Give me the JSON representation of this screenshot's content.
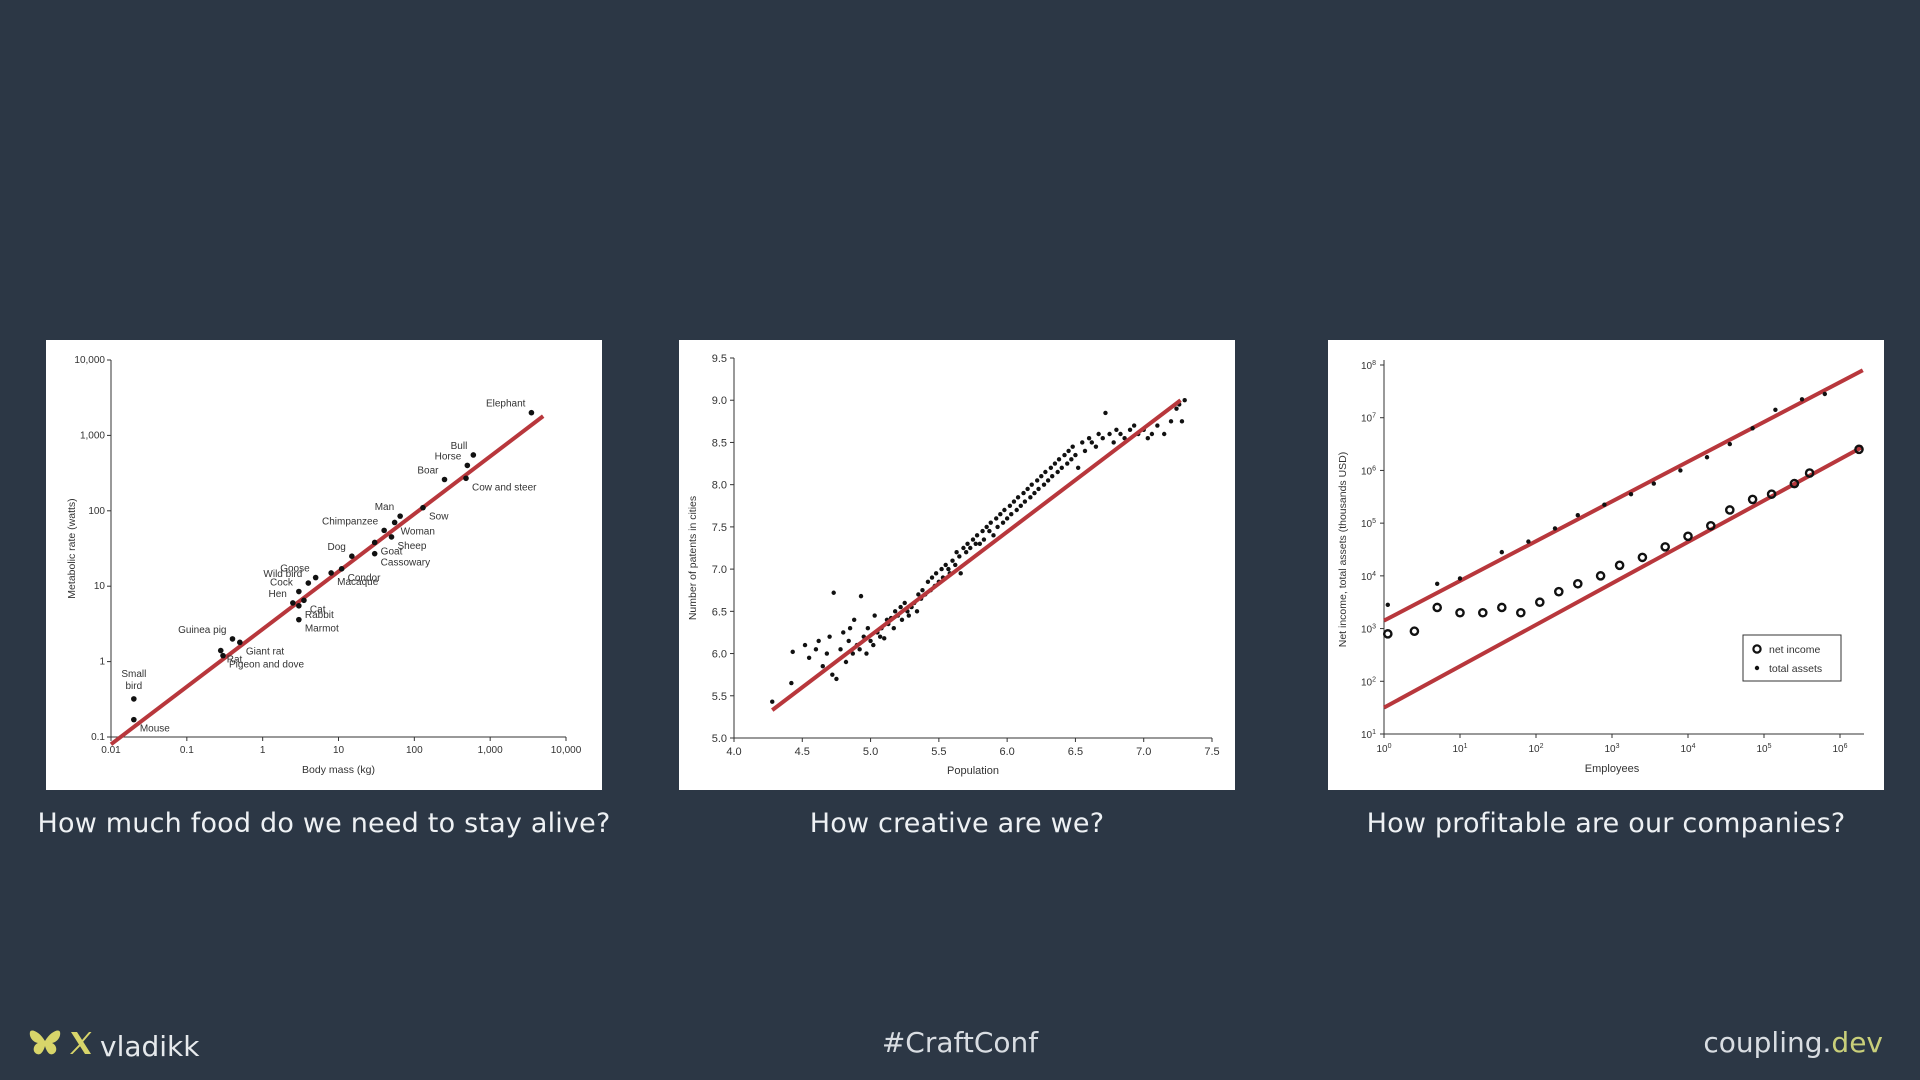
{
  "chart_data": [
    {
      "type": "scatter",
      "scale": "log-log",
      "xlabel": "Body mass (kg)",
      "ylabel": "Metabolic rate (watts)",
      "xlim": [
        0.01,
        10000
      ],
      "ylim": [
        0.1,
        10000
      ],
      "x_ticks": [
        "0.01",
        "0.1",
        "1",
        "10",
        "100",
        "1,000",
        "10,000"
      ],
      "y_ticks": [
        "0.1",
        "1",
        "10",
        "100",
        "1,000",
        "10,000"
      ],
      "fit_line": {
        "x": [
          0.01,
          5000
        ],
        "y": [
          0.08,
          1800
        ],
        "color": "#b8373c"
      },
      "points": [
        {
          "label": "Mouse",
          "x": 0.02,
          "y": 0.17
        },
        {
          "label": "Small bird",
          "x": 0.02,
          "y": 0.32
        },
        {
          "label": "Pigeon and dove",
          "x": 0.3,
          "y": 1.2
        },
        {
          "label": "Guinea pig",
          "x": 0.4,
          "y": 2.0
        },
        {
          "label": "Rat",
          "x": 0.28,
          "y": 1.4
        },
        {
          "label": "Giant rat",
          "x": 0.5,
          "y": 1.8
        },
        {
          "label": "Marmot",
          "x": 3.0,
          "y": 3.6
        },
        {
          "label": "Rabbit",
          "x": 3.0,
          "y": 5.5
        },
        {
          "label": "Cat",
          "x": 3.5,
          "y": 6.5
        },
        {
          "label": "Hen",
          "x": 2.5,
          "y": 6.0
        },
        {
          "label": "Cock",
          "x": 3.0,
          "y": 8.5
        },
        {
          "label": "Goose",
          "x": 5.0,
          "y": 13
        },
        {
          "label": "Wild bird",
          "x": 4.0,
          "y": 11
        },
        {
          "label": "Macaque",
          "x": 8.0,
          "y": 15
        },
        {
          "label": "Condor",
          "x": 11,
          "y": 17
        },
        {
          "label": "Dog",
          "x": 15,
          "y": 25
        },
        {
          "label": "Cassowary",
          "x": 30,
          "y": 27
        },
        {
          "label": "Goat",
          "x": 30,
          "y": 38
        },
        {
          "label": "Sheep",
          "x": 50,
          "y": 45
        },
        {
          "label": "Chimpanzee",
          "x": 40,
          "y": 55
        },
        {
          "label": "Woman",
          "x": 55,
          "y": 70
        },
        {
          "label": "Man",
          "x": 65,
          "y": 85
        },
        {
          "label": "Sow",
          "x": 130,
          "y": 110
        },
        {
          "label": "Boar",
          "x": 250,
          "y": 260
        },
        {
          "label": "Cow and steer",
          "x": 480,
          "y": 270
        },
        {
          "label": "Horse",
          "x": 500,
          "y": 400
        },
        {
          "label": "Bull",
          "x": 600,
          "y": 550
        },
        {
          "label": "Elephant",
          "x": 3500,
          "y": 2000
        }
      ]
    },
    {
      "type": "scatter",
      "xlabel": "Population",
      "ylabel": "Number of patents in cities",
      "xlim": [
        4.0,
        7.5
      ],
      "ylim": [
        5.0,
        9.5
      ],
      "x_ticks": [
        "4.0",
        "4.5",
        "5.0",
        "5.5",
        "6.0",
        "6.5",
        "7.0",
        "7.5"
      ],
      "y_ticks": [
        "5.0",
        "5.5",
        "6.0",
        "6.5",
        "7.0",
        "7.5",
        "8.0",
        "8.5",
        "9.0",
        "9.5"
      ],
      "fit_line": {
        "x": [
          4.28,
          7.27
        ],
        "y": [
          5.33,
          9.0
        ],
        "color": "#b8373c"
      },
      "points": [
        [
          4.28,
          5.43
        ],
        [
          4.42,
          5.65
        ],
        [
          4.43,
          6.02
        ],
        [
          4.52,
          6.1
        ],
        [
          4.55,
          5.95
        ],
        [
          4.6,
          6.05
        ],
        [
          4.62,
          6.15
        ],
        [
          4.65,
          5.85
        ],
        [
          4.68,
          6.0
        ],
        [
          4.7,
          6.2
        ],
        [
          4.72,
          5.75
        ],
        [
          4.73,
          6.72
        ],
        [
          4.75,
          5.7
        ],
        [
          4.78,
          6.05
        ],
        [
          4.8,
          6.25
        ],
        [
          4.82,
          5.9
        ],
        [
          4.84,
          6.15
        ],
        [
          4.85,
          6.3
        ],
        [
          4.87,
          6.0
        ],
        [
          4.88,
          6.4
        ],
        [
          4.9,
          6.1
        ],
        [
          4.92,
          6.05
        ],
        [
          4.93,
          6.68
        ],
        [
          4.95,
          6.2
        ],
        [
          4.97,
          6.0
        ],
        [
          4.98,
          6.3
        ],
        [
          5.0,
          6.15
        ],
        [
          5.02,
          6.1
        ],
        [
          5.03,
          6.45
        ],
        [
          5.05,
          6.25
        ],
        [
          5.07,
          6.2
        ],
        [
          5.08,
          6.3
        ],
        [
          5.1,
          6.18
        ],
        [
          5.12,
          6.4
        ],
        [
          5.13,
          6.35
        ],
        [
          5.15,
          6.42
        ],
        [
          5.17,
          6.3
        ],
        [
          5.18,
          6.5
        ],
        [
          5.2,
          6.45
        ],
        [
          5.22,
          6.55
        ],
        [
          5.23,
          6.4
        ],
        [
          5.25,
          6.6
        ],
        [
          5.27,
          6.5
        ],
        [
          5.28,
          6.45
        ],
        [
          5.3,
          6.55
        ],
        [
          5.32,
          6.6
        ],
        [
          5.34,
          6.5
        ],
        [
          5.35,
          6.7
        ],
        [
          5.37,
          6.65
        ],
        [
          5.38,
          6.75
        ],
        [
          5.4,
          6.7
        ],
        [
          5.42,
          6.85
        ],
        [
          5.44,
          6.75
        ],
        [
          5.45,
          6.9
        ],
        [
          5.47,
          6.8
        ],
        [
          5.48,
          6.95
        ],
        [
          5.5,
          6.85
        ],
        [
          5.52,
          7.0
        ],
        [
          5.53,
          6.9
        ],
        [
          5.55,
          7.05
        ],
        [
          5.57,
          7.0
        ],
        [
          5.58,
          6.95
        ],
        [
          5.6,
          7.1
        ],
        [
          5.62,
          7.05
        ],
        [
          5.63,
          7.2
        ],
        [
          5.65,
          7.15
        ],
        [
          5.66,
          6.95
        ],
        [
          5.68,
          7.25
        ],
        [
          5.7,
          7.2
        ],
        [
          5.71,
          7.3
        ],
        [
          5.73,
          7.25
        ],
        [
          5.75,
          7.35
        ],
        [
          5.77,
          7.3
        ],
        [
          5.78,
          7.4
        ],
        [
          5.8,
          7.3
        ],
        [
          5.82,
          7.45
        ],
        [
          5.83,
          7.35
        ],
        [
          5.85,
          7.5
        ],
        [
          5.87,
          7.45
        ],
        [
          5.88,
          7.55
        ],
        [
          5.9,
          7.4
        ],
        [
          5.92,
          7.6
        ],
        [
          5.93,
          7.5
        ],
        [
          5.95,
          7.65
        ],
        [
          5.97,
          7.55
        ],
        [
          5.98,
          7.7
        ],
        [
          6.0,
          7.6
        ],
        [
          6.02,
          7.75
        ],
        [
          6.03,
          7.65
        ],
        [
          6.05,
          7.8
        ],
        [
          6.07,
          7.7
        ],
        [
          6.08,
          7.85
        ],
        [
          6.1,
          7.75
        ],
        [
          6.12,
          7.9
        ],
        [
          6.13,
          7.8
        ],
        [
          6.15,
          7.95
        ],
        [
          6.17,
          7.85
        ],
        [
          6.18,
          8.0
        ],
        [
          6.2,
          7.9
        ],
        [
          6.22,
          8.05
        ],
        [
          6.23,
          7.95
        ],
        [
          6.25,
          8.1
        ],
        [
          6.27,
          8.0
        ],
        [
          6.28,
          8.15
        ],
        [
          6.3,
          8.05
        ],
        [
          6.32,
          8.2
        ],
        [
          6.33,
          8.1
        ],
        [
          6.35,
          8.25
        ],
        [
          6.37,
          8.15
        ],
        [
          6.38,
          8.3
        ],
        [
          6.4,
          8.2
        ],
        [
          6.42,
          8.35
        ],
        [
          6.44,
          8.25
        ],
        [
          6.45,
          8.4
        ],
        [
          6.47,
          8.3
        ],
        [
          6.48,
          8.45
        ],
        [
          6.5,
          8.35
        ],
        [
          6.52,
          8.2
        ],
        [
          6.55,
          8.5
        ],
        [
          6.57,
          8.4
        ],
        [
          6.6,
          8.55
        ],
        [
          6.62,
          8.5
        ],
        [
          6.65,
          8.45
        ],
        [
          6.67,
          8.6
        ],
        [
          6.7,
          8.55
        ],
        [
          6.72,
          8.85
        ],
        [
          6.75,
          8.6
        ],
        [
          6.78,
          8.5
        ],
        [
          6.8,
          8.65
        ],
        [
          6.83,
          8.6
        ],
        [
          6.86,
          8.55
        ],
        [
          6.9,
          8.65
        ],
        [
          6.93,
          8.7
        ],
        [
          6.96,
          8.6
        ],
        [
          7.0,
          8.65
        ],
        [
          7.03,
          8.55
        ],
        [
          7.06,
          8.6
        ],
        [
          7.1,
          8.7
        ],
        [
          7.15,
          8.6
        ],
        [
          7.2,
          8.75
        ],
        [
          7.24,
          8.9
        ],
        [
          7.26,
          8.95
        ],
        [
          7.28,
          8.75
        ],
        [
          7.3,
          9.0
        ]
      ]
    },
    {
      "type": "scatter",
      "scale": "log-log",
      "xlabel": "Employees",
      "ylabel": "Net income, total assets (thousands USD)",
      "xlim_exp": [
        0,
        6
      ],
      "ylim_exp": [
        1,
        8
      ],
      "x_ticks": [
        "10^0",
        "10^1",
        "10^2",
        "10^3",
        "10^4",
        "10^5",
        "10^6"
      ],
      "y_ticks": [
        "10^1",
        "10^2",
        "10^3",
        "10^4",
        "10^5",
        "10^6",
        "10^7",
        "10^8"
      ],
      "legend": {
        "position": "bottom-right",
        "entries": [
          "net income",
          "total assets"
        ]
      },
      "fit_lines": [
        {
          "x_exp": [
            0,
            6.3
          ],
          "y_exp": [
            3.15,
            7.9
          ],
          "color": "#b8373c"
        },
        {
          "x_exp": [
            0,
            6.3
          ],
          "y_exp": [
            1.5,
            6.45
          ],
          "color": "#b8373c"
        }
      ],
      "series": [
        {
          "name": "net income",
          "points_exp": [
            [
              0.05,
              2.9
            ],
            [
              0.4,
              2.95
            ],
            [
              0.7,
              3.4
            ],
            [
              1.0,
              3.3
            ],
            [
              1.3,
              3.3
            ],
            [
              1.55,
              3.4
            ],
            [
              1.8,
              3.3
            ],
            [
              2.05,
              3.5
            ],
            [
              2.3,
              3.7
            ],
            [
              2.55,
              3.85
            ],
            [
              2.85,
              4.0
            ],
            [
              3.1,
              4.2
            ],
            [
              3.4,
              4.35
            ],
            [
              3.7,
              4.55
            ],
            [
              4.0,
              4.75
            ],
            [
              4.3,
              4.95
            ],
            [
              4.55,
              5.25
            ],
            [
              4.85,
              5.45
            ],
            [
              5.1,
              5.55
            ],
            [
              5.4,
              5.75
            ],
            [
              5.6,
              5.95
            ],
            [
              6.25,
              6.4
            ]
          ]
        },
        {
          "name": "total assets",
          "points_exp": [
            [
              0.05,
              3.45
            ],
            [
              0.7,
              3.85
            ],
            [
              1.0,
              3.95
            ],
            [
              1.55,
              4.45
            ],
            [
              1.9,
              4.65
            ],
            [
              2.25,
              4.9
            ],
            [
              2.55,
              5.15
            ],
            [
              2.9,
              5.35
            ],
            [
              3.25,
              5.55
            ],
            [
              3.55,
              5.75
            ],
            [
              3.9,
              6.0
            ],
            [
              4.25,
              6.25
            ],
            [
              4.55,
              6.5
            ],
            [
              4.85,
              6.8
            ],
            [
              5.15,
              7.15
            ],
            [
              5.5,
              7.35
            ],
            [
              5.8,
              7.45
            ]
          ]
        }
      ]
    }
  ],
  "captions": [
    "How much food do we need to stay alive?",
    "How creative are we?",
    "How profitable are our companies?"
  ],
  "footer": {
    "handle": "vladikk",
    "hashtag": "#CraftConf",
    "site_main": "coupling.",
    "site_tld": "dev",
    "icons": [
      "butterfly-icon",
      "x-logo-icon"
    ]
  }
}
